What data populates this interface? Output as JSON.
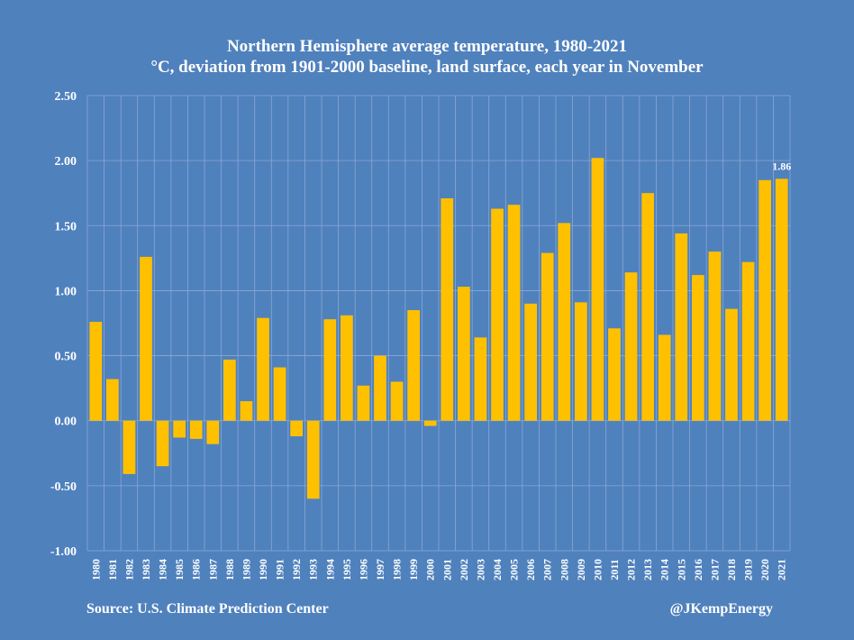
{
  "chart_data": {
    "type": "bar",
    "title": "Northern Hemisphere average temperature, 1980-2021",
    "subtitle": "°C, deviation from 1901-2000 baseline, land surface, each year in November",
    "ylim": [
      -1.0,
      2.5
    ],
    "yticks": [
      "2.50",
      "2.00",
      "1.50",
      "1.00",
      "0.50",
      "0.00",
      "-0.50",
      "-1.00"
    ],
    "categories": [
      "1980",
      "1981",
      "1982",
      "1983",
      "1984",
      "1985",
      "1986",
      "1987",
      "1988",
      "1989",
      "1990",
      "1991",
      "1992",
      "1993",
      "1994",
      "1995",
      "1996",
      "1997",
      "1998",
      "1999",
      "2000",
      "2001",
      "2002",
      "2003",
      "2004",
      "2005",
      "2006",
      "2007",
      "2008",
      "2009",
      "2010",
      "2011",
      "2012",
      "2013",
      "2014",
      "2015",
      "2016",
      "2017",
      "2018",
      "2019",
      "2020",
      "2021"
    ],
    "values": [
      0.76,
      0.32,
      -0.41,
      1.26,
      -0.35,
      -0.13,
      -0.14,
      -0.18,
      0.47,
      0.15,
      0.79,
      0.41,
      -0.12,
      -0.6,
      0.78,
      0.81,
      0.27,
      0.5,
      0.3,
      0.85,
      -0.04,
      1.71,
      1.03,
      0.64,
      1.63,
      1.66,
      0.9,
      1.29,
      1.52,
      0.91,
      2.02,
      0.71,
      1.14,
      1.75,
      0.66,
      1.44,
      1.12,
      1.3,
      0.86,
      1.22,
      1.85,
      1.86
    ],
    "data_label": "1.86",
    "colors": {
      "background": "#4f81bd",
      "bar": "#ffc000",
      "grid": "#8aa8d4",
      "text": "#ffffff"
    }
  },
  "footer": {
    "source": "Source: U.S. Climate Prediction Center",
    "credit": "@JKempEnergy"
  }
}
